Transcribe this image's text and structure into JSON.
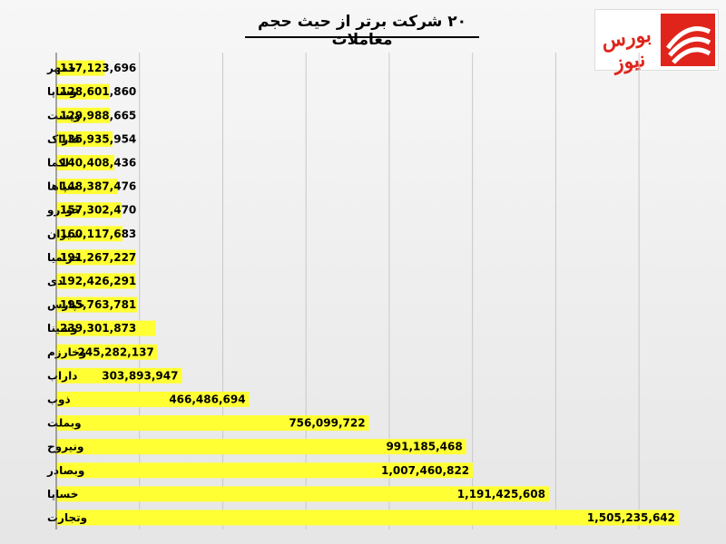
{
  "title": "۲۰ شرکت برتر از حیث حجم معاملات",
  "logo": {
    "text": "بورس نیوز",
    "brand_color": "#e0241b"
  },
  "colors": {
    "bar": "#ffff33",
    "grid": "#c8c8c8",
    "axis": "#555555"
  },
  "chart_data": {
    "type": "bar",
    "orientation": "horizontal",
    "title": "۲۰ شرکت برتر از حیث حجم معاملات",
    "xlabel": "",
    "ylabel": "",
    "xlim": [
      0,
      1600000000
    ],
    "grid": true,
    "legend": "none",
    "categories": [
      "خمهر",
      "وساپا",
      "وپست",
      "فاراک",
      "لکما",
      "سپاها",
      "خودرو",
      "شیران",
      "خزامیا",
      "دی",
      "خپارس",
      "وسینا",
      "وخارزم",
      "داراب",
      "ذوب",
      "وبملت",
      "ونیروح",
      "وبصادر",
      "خساپا",
      "وتجارت"
    ],
    "values": [
      117123696,
      128601860,
      129988665,
      135935954,
      140408436,
      148387476,
      157302470,
      160117683,
      191267227,
      192426291,
      195763781,
      239301873,
      245282137,
      303893947,
      466486694,
      756099722,
      991185468,
      1007460822,
      1191425608,
      1505235642
    ],
    "labels": [
      "117,123,696",
      "128,601,860",
      "129,988,665",
      "135,935,954",
      "140,408,436",
      "148,387,476",
      "157,302,470",
      "160,117,683",
      "191,267,227",
      "192,426,291",
      "195,763,781",
      "239,301,873",
      "245,282,137",
      "303,893,947",
      "466,486,694",
      "756,099,722",
      "991,185,468",
      "1,007,460,822",
      "1,191,425,608",
      "1,505,235,642"
    ]
  }
}
